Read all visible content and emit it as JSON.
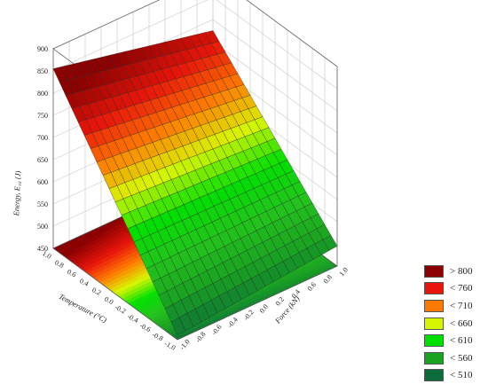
{
  "chart_data": {
    "type": "surface3d",
    "title": "",
    "xlabel": "Force (kN)",
    "ylabel": "Temperature (°C)",
    "zlabel": "Energy, E₁₀ (J)",
    "xlim": [
      -1.0,
      1.0
    ],
    "ylim": [
      -1.0,
      1.0
    ],
    "zlim": [
      450,
      900
    ],
    "x_ticks": [
      "-1.0",
      "-0.8",
      "-0.6",
      "-0.4",
      "-0.2",
      "0.0",
      "0.2",
      "0.4",
      "0.6",
      "0.8",
      "1.0"
    ],
    "y_ticks": [
      "1.0",
      "0.8",
      "0.6",
      "0.4",
      "0.2",
      "0.0",
      "-0.2",
      "-0.4",
      "-0.6",
      "-0.8",
      "-1.0"
    ],
    "z_ticks": [
      "450",
      "500",
      "550",
      "600",
      "650",
      "700",
      "750",
      "800",
      "850",
      "900"
    ],
    "corner_values": [
      {
        "force": -1.0,
        "temperature": -1.0,
        "energy": 460
      },
      {
        "force": 1.0,
        "temperature": -1.0,
        "energy": 495
      },
      {
        "force": -1.0,
        "temperature": 1.0,
        "energy": 855
      },
      {
        "force": 1.0,
        "temperature": 1.0,
        "energy": 775
      }
    ],
    "legend": [
      {
        "label": "> 800",
        "color": "#8b0000"
      },
      {
        "label": "< 760",
        "color": "#e8150a"
      },
      {
        "label": "< 710",
        "color": "#ff7a00"
      },
      {
        "label": "< 660",
        "color": "#d8f500"
      },
      {
        "label": "< 610",
        "color": "#00e000"
      },
      {
        "label": "< 560",
        "color": "#1aa321"
      },
      {
        "label": "< 510",
        "color": "#0b6b3a"
      }
    ],
    "grid": true,
    "legend_position": "bottom-right"
  }
}
